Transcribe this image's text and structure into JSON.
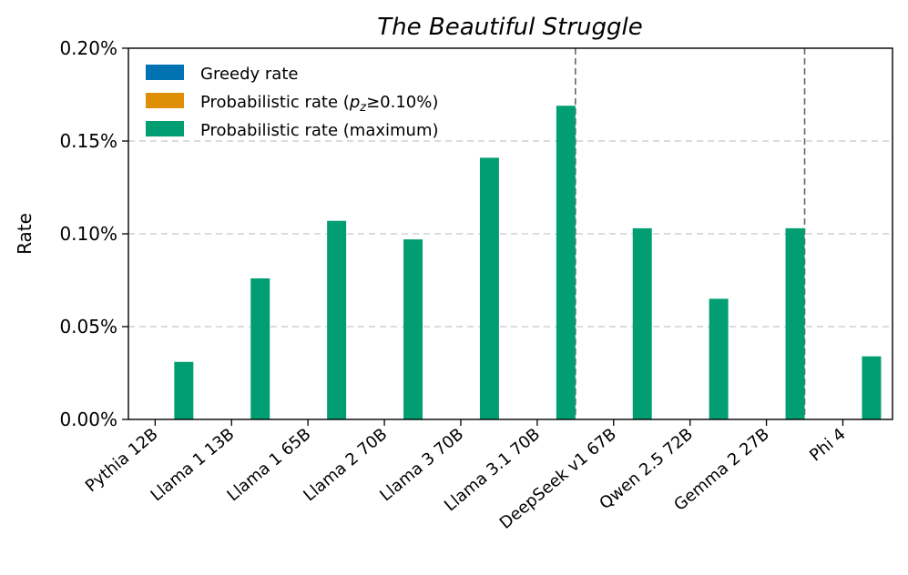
{
  "chart_data": {
    "type": "bar",
    "title": "The Beautiful Struggle",
    "xlabel": "",
    "ylabel": "Rate",
    "ylim": [
      0,
      0.2
    ],
    "yticks": [
      "0.00%",
      "0.05%",
      "0.10%",
      "0.15%",
      "0.20%"
    ],
    "grid": "horizontal dashed",
    "legend_position": "top-left",
    "categories": [
      "Pythia 12B",
      "Llama 1 13B",
      "Llama 1 65B",
      "Llama 2 70B",
      "Llama 3 70B",
      "Llama 3.1 70B",
      "DeepSeek v1 67B",
      "Qwen 2.5 72B",
      "Gemma 2 27B",
      "Phi 4"
    ],
    "series": [
      {
        "name": "Greedy rate",
        "color": "#0173b2",
        "values": [
          0,
          0,
          0,
          0,
          0,
          0,
          0,
          0,
          0,
          0
        ]
      },
      {
        "name": "Probabilistic rate (",
        "name_math": "p",
        "name_sub": "z",
        "name_rest": "≥0.10%)",
        "color": "#de8f05",
        "values": [
          0,
          0,
          0,
          0,
          0,
          0,
          0,
          0,
          0,
          0
        ]
      },
      {
        "name": "Probabilistic rate (maximum)",
        "color": "#029e73",
        "values": [
          0.031,
          0.076,
          0.107,
          0.097,
          0.141,
          0.169,
          0.103,
          0.065,
          0.103,
          0.034
        ]
      }
    ],
    "vertical_separators_after": [
      5,
      8
    ]
  }
}
